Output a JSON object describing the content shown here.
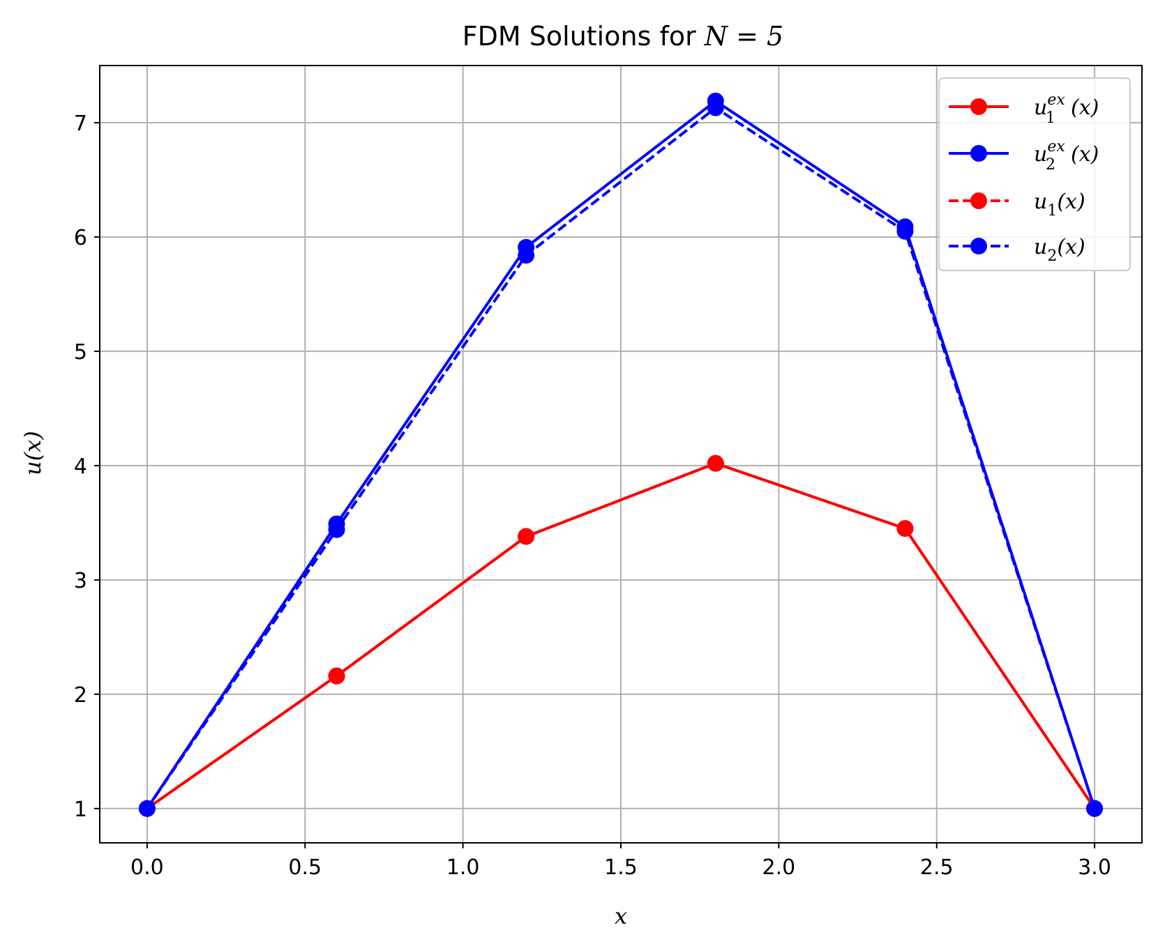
{
  "chart_data": {
    "type": "line",
    "title": "FDM Solutions for N = 5",
    "title_prefix": "FDM Solutions for ",
    "title_math": "N = 5",
    "xlabel": "x",
    "ylabel": "u(x)",
    "xlim": [
      -0.15,
      3.15
    ],
    "ylim": [
      0.7,
      7.5
    ],
    "xticks": [
      0.0,
      0.5,
      1.0,
      1.5,
      2.0,
      2.5,
      3.0
    ],
    "xtick_labels": [
      "0.0",
      "0.5",
      "1.0",
      "1.5",
      "2.0",
      "2.5",
      "3.0"
    ],
    "yticks": [
      1,
      2,
      3,
      4,
      5,
      6,
      7
    ],
    "ytick_labels": [
      "1",
      "2",
      "3",
      "4",
      "5",
      "6",
      "7"
    ],
    "grid": true,
    "legend_position": "top-right",
    "x": [
      0.0,
      0.6,
      1.2,
      1.8,
      2.4,
      3.0
    ],
    "series": [
      {
        "name": "u_1^ex(x)",
        "legend_base": "u",
        "legend_sub": "1",
        "legend_sup": "ex",
        "legend_tail": "(x)",
        "color": "#ff0000",
        "style": "solid",
        "values": [
          1.0,
          2.16,
          3.38,
          4.02,
          3.45,
          1.0
        ]
      },
      {
        "name": "u_2^ex(x)",
        "legend_base": "u",
        "legend_sub": "2",
        "legend_sup": "ex",
        "legend_tail": "(x)",
        "color": "#0000ff",
        "style": "solid",
        "values": [
          1.0,
          3.49,
          5.91,
          7.19,
          6.09,
          1.0
        ]
      },
      {
        "name": "u_1(x)",
        "legend_base": "u",
        "legend_sub": "1",
        "legend_sup": "",
        "legend_tail": "(x)",
        "color": "#ff0000",
        "style": "dashed",
        "values": [
          1.0,
          2.16,
          3.38,
          4.02,
          3.45,
          1.0
        ]
      },
      {
        "name": "u_2(x)",
        "legend_base": "u",
        "legend_sub": "2",
        "legend_sup": "",
        "legend_tail": "(x)",
        "color": "#0000ff",
        "style": "dashed",
        "values": [
          1.0,
          3.44,
          5.84,
          7.13,
          6.05,
          1.0
        ]
      }
    ]
  }
}
